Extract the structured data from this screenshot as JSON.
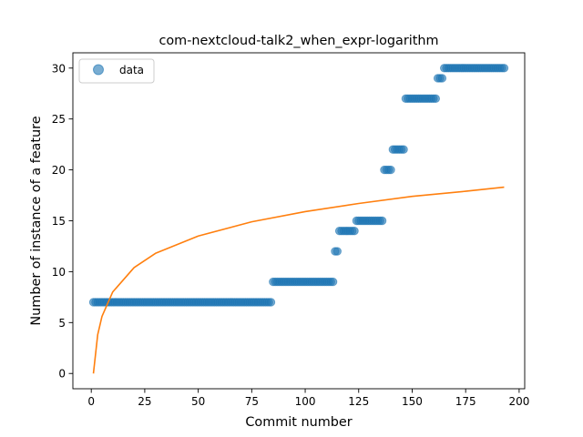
{
  "chart_data": {
    "type": "scatter",
    "title": "com-nextcloud-talk2_when_expr-logarithm",
    "xlabel": "Commit number",
    "ylabel": "Number of instance of a feature",
    "xlim": [
      -8.6,
      202.6
    ],
    "ylim": [
      -1.5,
      31.5
    ],
    "xticks": [
      0,
      25,
      50,
      75,
      100,
      125,
      150,
      175,
      200
    ],
    "yticks": [
      0,
      5,
      10,
      15,
      20,
      25,
      30
    ],
    "grid": false,
    "legend": {
      "placement": "top-left",
      "entries": [
        "data"
      ]
    },
    "series": [
      {
        "name": "data",
        "kind": "points",
        "color": "#1f77b4",
        "segments": [
          {
            "x_start": 1,
            "x_end": 84,
            "y": 7
          },
          {
            "x_start": 85,
            "x_end": 113,
            "y": 9
          },
          {
            "x_start": 114,
            "x_end": 115,
            "y": 12
          },
          {
            "x_start": 116,
            "x_end": 123,
            "y": 14
          },
          {
            "x_start": 124,
            "x_end": 136,
            "y": 15
          },
          {
            "x_start": 137,
            "x_end": 140,
            "y": 20
          },
          {
            "x_start": 141,
            "x_end": 146,
            "y": 22
          },
          {
            "x_start": 147,
            "x_end": 161,
            "y": 27
          },
          {
            "x_start": 162,
            "x_end": 164,
            "y": 29
          },
          {
            "x_start": 165,
            "x_end": 193,
            "y": 30
          }
        ]
      },
      {
        "kind": "fit-line",
        "color": "#ff7f0e",
        "x": [
          1,
          3,
          5,
          10,
          20,
          30,
          50,
          75,
          100,
          125,
          150,
          175,
          193
        ],
        "y": [
          0.0,
          3.8,
          5.6,
          8.0,
          10.4,
          11.8,
          13.5,
          14.9,
          15.9,
          16.7,
          17.4,
          17.9,
          18.3
        ]
      }
    ]
  }
}
